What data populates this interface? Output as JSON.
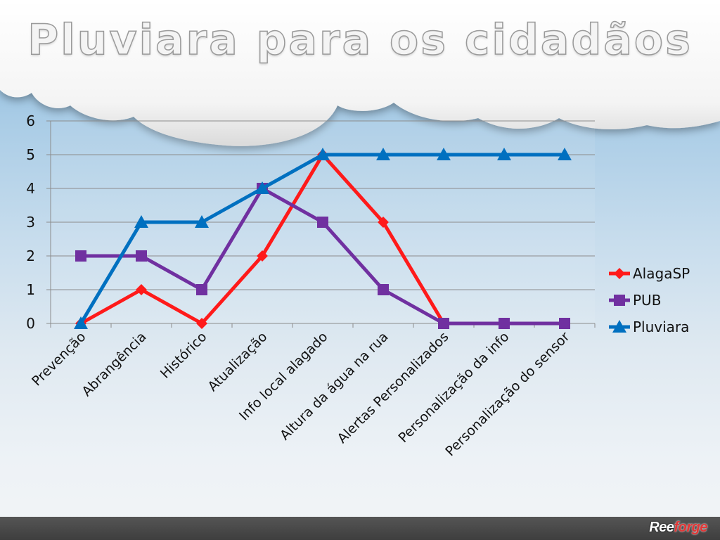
{
  "slide": {
    "title": "Pluviara para os cidadãos",
    "brand": {
      "part1": "Ree",
      "part2": "forge"
    }
  },
  "colors": {
    "AlagaSP": "#ff1a1a",
    "PUB": "#7030a0",
    "Pluviara": "#0070c0"
  },
  "chart_data": {
    "type": "line",
    "title": "",
    "xlabel": "",
    "ylabel": "",
    "categories": [
      "Prevenção",
      "Abrangência",
      "Histórico",
      "Atualização",
      "Info local alagado",
      "Altura da água na rua",
      "Alertas Personalizados",
      "Personalização da info",
      "Personalização do sensor"
    ],
    "ylim": [
      0,
      6
    ],
    "yticks": [
      0,
      1,
      2,
      3,
      4,
      5,
      6
    ],
    "grid": true,
    "legend": "right",
    "series": [
      {
        "name": "AlagaSP",
        "marker": "diamond",
        "values": [
          0,
          1,
          0,
          2,
          5,
          3,
          0,
          null,
          null
        ]
      },
      {
        "name": "PUB",
        "marker": "square",
        "values": [
          2,
          2,
          1,
          4,
          3,
          1,
          0,
          0,
          0
        ]
      },
      {
        "name": "Pluviara",
        "marker": "triangle",
        "values": [
          0,
          3,
          3,
          4,
          5,
          5,
          5,
          5,
          5
        ]
      }
    ]
  }
}
